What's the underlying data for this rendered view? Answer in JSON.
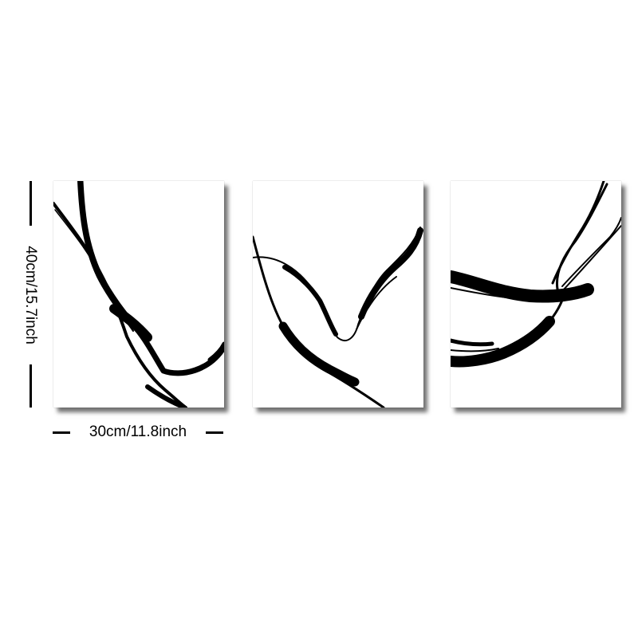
{
  "dimensions": {
    "height_label": "40cm/15.7inch",
    "width_label": "30cm/11.8inch"
  },
  "artwork": {
    "panel_count": 3,
    "style": "black ink abstract line art on white canvas",
    "ink_color": "#000000",
    "canvas_color": "#ffffff"
  }
}
